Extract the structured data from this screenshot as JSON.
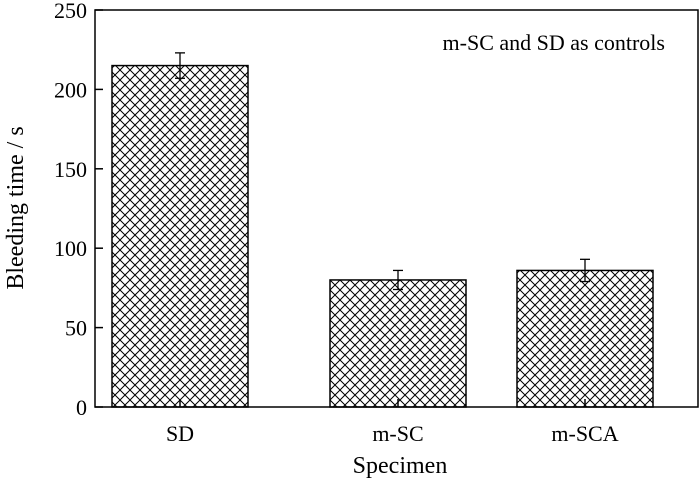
{
  "chart_data": {
    "type": "bar",
    "categories": [
      "SD",
      "m-SC",
      "m-SCA"
    ],
    "values": [
      215,
      80,
      86
    ],
    "errors": [
      8,
      6,
      7
    ],
    "xlabel": "Specimen",
    "ylabel": "Bleeding time / s",
    "ylim": [
      0,
      250
    ],
    "yticks": [
      "0",
      "50",
      "100",
      "150",
      "200",
      "250"
    ],
    "annotation": "m-SC and SD as controls",
    "bar_fill": "crosshatch",
    "grid": false,
    "legend": "none",
    "colors": {
      "stroke": "#000000",
      "background": "#ffffff"
    }
  }
}
